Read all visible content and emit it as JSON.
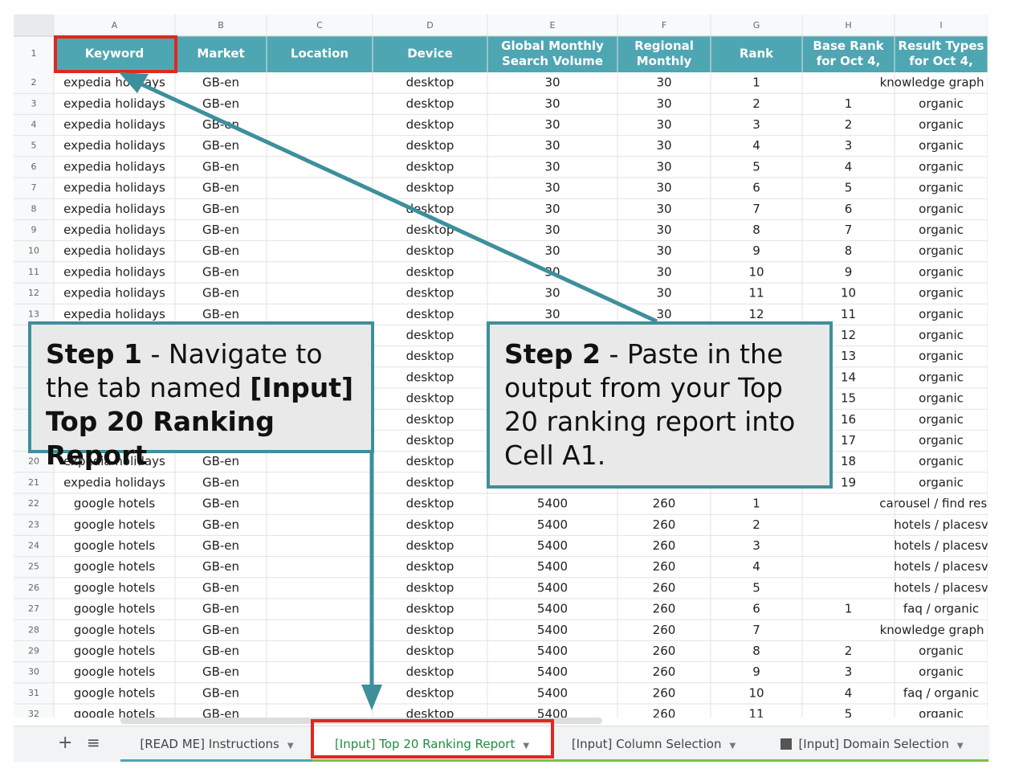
{
  "columns": [
    "A",
    "B",
    "C",
    "D",
    "E",
    "F",
    "G",
    "H",
    "I"
  ],
  "header": {
    "row_number": "1",
    "cells": [
      [
        "Keyword"
      ],
      [
        "Market"
      ],
      [
        "Location"
      ],
      [
        "Device"
      ],
      [
        "Global Monthly",
        "Search Volume"
      ],
      [
        "Regional",
        "Monthly"
      ],
      [
        "Rank"
      ],
      [
        "Base Rank",
        "for Oct 4,"
      ],
      [
        "Result Types",
        "for Oct 4,"
      ]
    ]
  },
  "rows": [
    {
      "n": "2",
      "cells": [
        "expedia holidays",
        "GB-en",
        null,
        "desktop",
        "30",
        "30",
        "1",
        null,
        "knowledge graph / c"
      ]
    },
    {
      "n": "3",
      "cells": [
        "expedia holidays",
        "GB-en",
        null,
        "desktop",
        "30",
        "30",
        "2",
        "1",
        "organic"
      ]
    },
    {
      "n": "4",
      "cells": [
        "expedia holidays",
        "GB-en",
        null,
        "desktop",
        "30",
        "30",
        "3",
        "2",
        "organic"
      ]
    },
    {
      "n": "5",
      "cells": [
        "expedia holidays",
        "GB-en",
        null,
        "desktop",
        "30",
        "30",
        "4",
        "3",
        "organic"
      ]
    },
    {
      "n": "6",
      "cells": [
        "expedia holidays",
        "GB-en",
        null,
        "desktop",
        "30",
        "30",
        "5",
        "4",
        "organic"
      ]
    },
    {
      "n": "7",
      "cells": [
        "expedia holidays",
        "GB-en",
        null,
        "desktop",
        "30",
        "30",
        "6",
        "5",
        "organic"
      ]
    },
    {
      "n": "8",
      "cells": [
        "expedia holidays",
        "GB-en",
        null,
        "desktop",
        "30",
        "30",
        "7",
        "6",
        "organic"
      ]
    },
    {
      "n": "9",
      "cells": [
        "expedia holidays",
        "GB-en",
        null,
        "desktop",
        "30",
        "30",
        "8",
        "7",
        "organic"
      ]
    },
    {
      "n": "10",
      "cells": [
        "expedia holidays",
        "GB-en",
        null,
        "desktop",
        "30",
        "30",
        "9",
        "8",
        "organic"
      ]
    },
    {
      "n": "11",
      "cells": [
        "expedia holidays",
        "GB-en",
        null,
        "desktop",
        "30",
        "30",
        "10",
        "9",
        "organic"
      ]
    },
    {
      "n": "12",
      "cells": [
        "expedia holidays",
        "GB-en",
        null,
        "desktop",
        "30",
        "30",
        "11",
        "10",
        "organic"
      ]
    },
    {
      "n": "13",
      "cells": [
        "expedia holidays",
        "GB-en",
        null,
        "desktop",
        "30",
        "30",
        "12",
        "11",
        "organic"
      ]
    },
    {
      "n": null,
      "cells": [
        null,
        null,
        null,
        "desktop",
        null,
        null,
        null,
        "12",
        "organic"
      ]
    },
    {
      "n": null,
      "cells": [
        null,
        null,
        null,
        "desktop",
        null,
        null,
        null,
        "13",
        "organic"
      ]
    },
    {
      "n": null,
      "cells": [
        null,
        null,
        null,
        "desktop",
        null,
        null,
        null,
        "14",
        "organic"
      ]
    },
    {
      "n": null,
      "cells": [
        null,
        null,
        null,
        "desktop",
        null,
        null,
        null,
        "15",
        "organic"
      ]
    },
    {
      "n": null,
      "cells": [
        null,
        null,
        null,
        "desktop",
        null,
        null,
        null,
        "16",
        "organic"
      ]
    },
    {
      "n": null,
      "cells": [
        null,
        null,
        null,
        "desktop",
        null,
        null,
        null,
        "17",
        "organic"
      ]
    },
    {
      "n": "20",
      "cells": [
        "expedia holidays",
        "GB-en",
        null,
        "desktop",
        null,
        null,
        null,
        "18",
        "organic"
      ]
    },
    {
      "n": "21",
      "cells": [
        "expedia holidays",
        "GB-en",
        null,
        "desktop",
        null,
        null,
        null,
        "19",
        "organic"
      ]
    },
    {
      "n": "22",
      "cells": [
        "google hotels",
        "GB-en",
        null,
        "desktop",
        "5400",
        "260",
        "1",
        null,
        "carousel / find result"
      ]
    },
    {
      "n": "23",
      "cells": [
        "google hotels",
        "GB-en",
        null,
        "desktop",
        "5400",
        "260",
        "2",
        null,
        "hotels / placesv"
      ]
    },
    {
      "n": "24",
      "cells": [
        "google hotels",
        "GB-en",
        null,
        "desktop",
        "5400",
        "260",
        "3",
        null,
        "hotels / placesv"
      ]
    },
    {
      "n": "25",
      "cells": [
        "google hotels",
        "GB-en",
        null,
        "desktop",
        "5400",
        "260",
        "4",
        null,
        "hotels / placesv"
      ]
    },
    {
      "n": "26",
      "cells": [
        "google hotels",
        "GB-en",
        null,
        "desktop",
        "5400",
        "260",
        "5",
        null,
        "hotels / placesv"
      ]
    },
    {
      "n": "27",
      "cells": [
        "google hotels",
        "GB-en",
        null,
        "desktop",
        "5400",
        "260",
        "6",
        "1",
        "faq / organic"
      ]
    },
    {
      "n": "28",
      "cells": [
        "google hotels",
        "GB-en",
        null,
        "desktop",
        "5400",
        "260",
        "7",
        null,
        "knowledge graph / c"
      ]
    },
    {
      "n": "29",
      "cells": [
        "google hotels",
        "GB-en",
        null,
        "desktop",
        "5400",
        "260",
        "8",
        "2",
        "organic"
      ]
    },
    {
      "n": "30",
      "cells": [
        "google hotels",
        "GB-en",
        null,
        "desktop",
        "5400",
        "260",
        "9",
        "3",
        "organic"
      ]
    },
    {
      "n": "31",
      "cells": [
        "google hotels",
        "GB-en",
        null,
        "desktop",
        "5400",
        "260",
        "10",
        "4",
        "faq / organic"
      ]
    },
    {
      "n": "32",
      "cells": [
        "google hotels",
        "GB-en",
        null,
        "desktop",
        "5400",
        "260",
        "11",
        "5",
        "organic"
      ]
    }
  ],
  "callouts": [
    [
      {
        "text": "Step 1",
        "bold": true
      },
      {
        "text": " - Navigate to the tab named ",
        "bold": false
      },
      {
        "text": "[Input] Top 20 Ranking Report",
        "bold": true
      }
    ],
    [
      {
        "text": "Step 2",
        "bold": true
      },
      {
        "text": " - Paste in the output from your Top 20 ranking report into Cell A1.",
        "bold": false
      }
    ]
  ],
  "tabs": [
    "[READ ME] Instructions",
    "[Input] Top 20 Ranking Report",
    "[Input] Column Selection",
    "[Input] Domain Selection"
  ]
}
